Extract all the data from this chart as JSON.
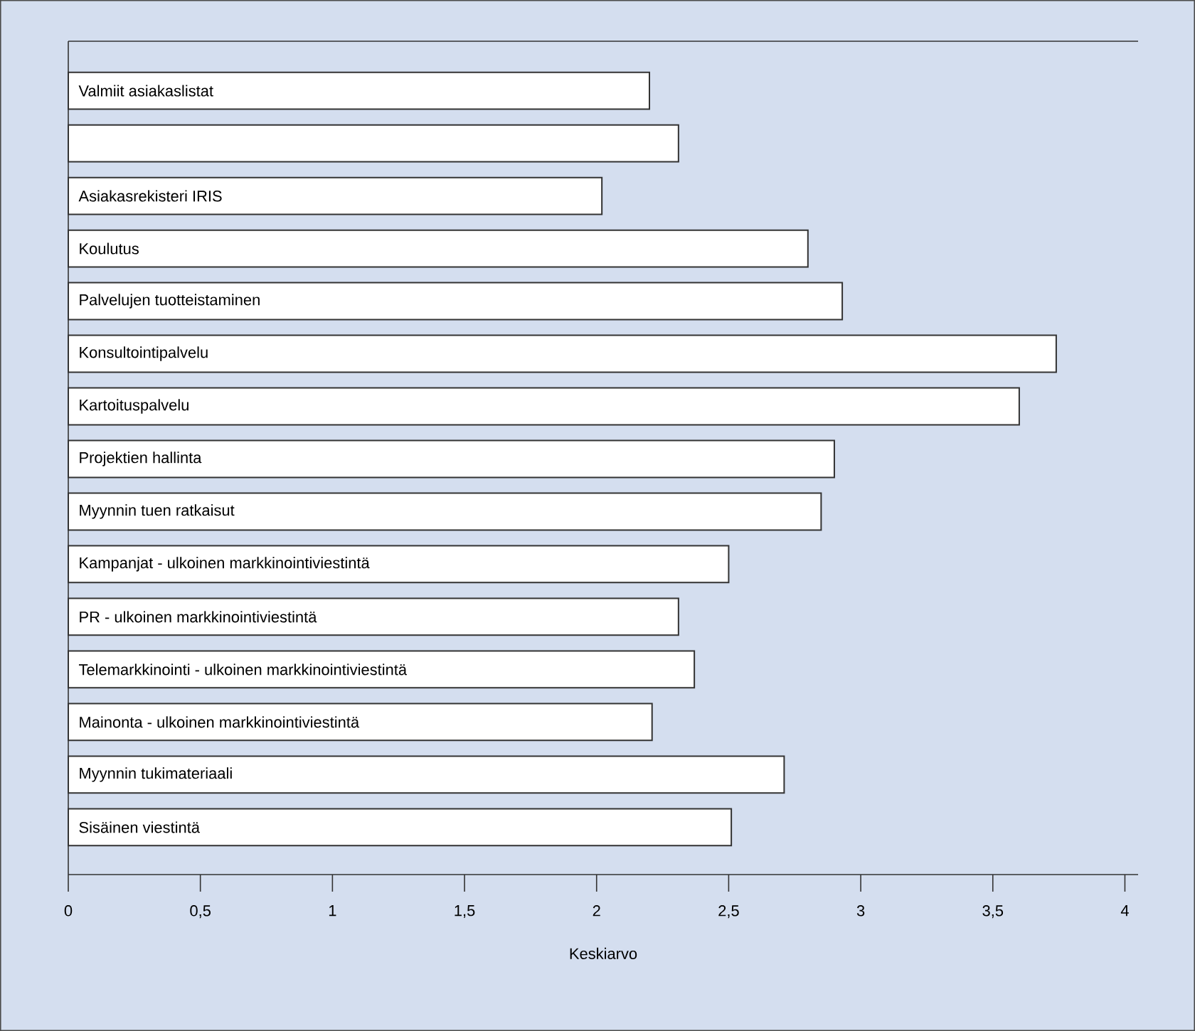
{
  "chart_data": {
    "type": "bar",
    "orientation": "horizontal",
    "xlabel": "Keskiarvo",
    "categories": [
      "Valmiit asiakaslistat",
      null,
      "Asiakasrekisteri IRIS",
      "Koulutus",
      "Palvelujen tuotteistaminen",
      "Konsultointipalvelu",
      "Kartoituspalvelu",
      "Projektien hallinta",
      "Myynnin tuen ratkaisut",
      "Kampanjat - ulkoinen markkinointiviestintä",
      "PR - ulkoinen markkinointiviestintä",
      "Telemarkkinointi - ulkoinen markkinointiviestintä",
      "Mainonta - ulkoinen markkinointiviestintä",
      "Myynnin tukimateriaali",
      "Sisäinen viestintä"
    ],
    "values": [
      2.2,
      2.31,
      2.02,
      2.8,
      2.93,
      3.74,
      3.6,
      2.9,
      2.85,
      2.5,
      2.31,
      2.37,
      2.21,
      2.71,
      2.51
    ],
    "color": "#ffffff",
    "xlim": [
      0,
      4.05
    ],
    "xticks": [
      0,
      {
        "value": 0.5,
        "label": "0,5"
      },
      1,
      {
        "value": 1.5,
        "label": "1,5"
      },
      2,
      {
        "value": 2.5,
        "label": "2,5"
      },
      3,
      {
        "value": 3.5,
        "label": "3,5"
      },
      4
    ],
    "grid": false
  }
}
